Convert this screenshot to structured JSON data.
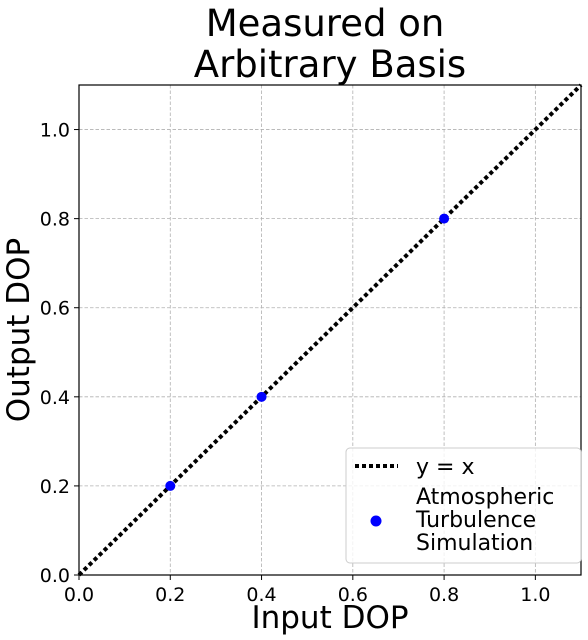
{
  "chart_data": {
    "type": "scatter",
    "title": [
      "Measured on",
      "Arbitrary Basis"
    ],
    "xlabel": "Input DOP",
    "ylabel": "Output DOP",
    "xlim": [
      0.0,
      1.1
    ],
    "ylim": [
      0.0,
      1.1
    ],
    "x_ticks": [
      "0.0",
      "0.2",
      "0.4",
      "0.6",
      "0.8",
      "1.0"
    ],
    "y_ticks": [
      "0.0",
      "0.2",
      "0.4",
      "0.6",
      "0.8",
      "1.0"
    ],
    "grid": true,
    "legend_position": "lower-right",
    "series": [
      {
        "name": "y = x",
        "kind": "line",
        "style": "dotted",
        "color": "#000000",
        "x": [
          0.0,
          1.1
        ],
        "y": [
          0.0,
          1.1
        ]
      },
      {
        "name": [
          "Atmospheric",
          "Turbulence",
          "Simulation"
        ],
        "kind": "scatter",
        "color": "#0000ff",
        "x": [
          0.2,
          0.4,
          0.8
        ],
        "y": [
          0.2,
          0.4,
          0.8
        ]
      }
    ]
  }
}
